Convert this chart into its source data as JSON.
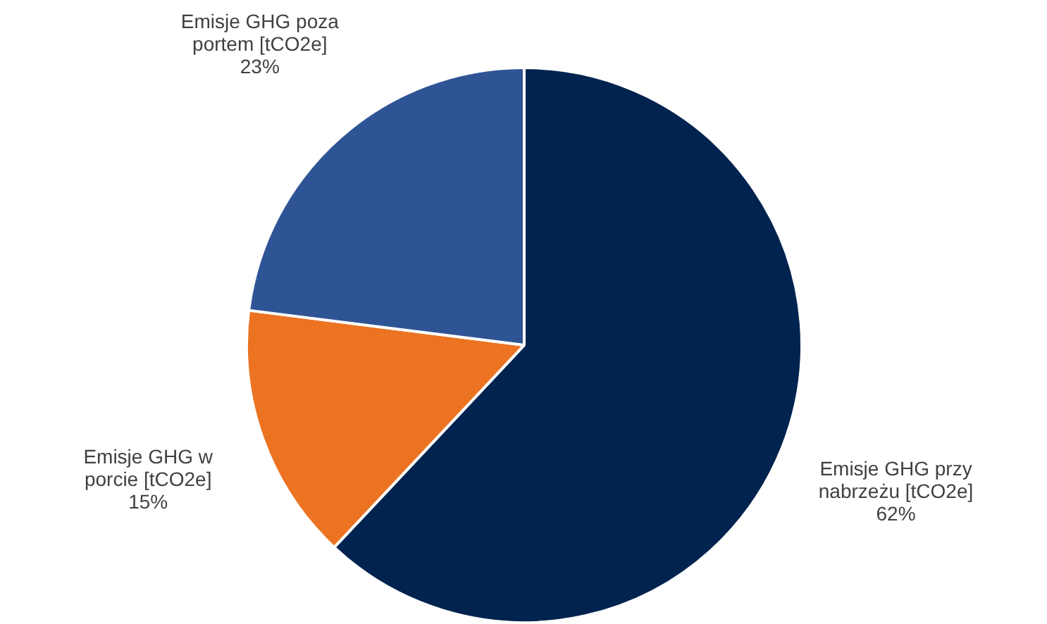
{
  "chart_data": {
    "type": "pie",
    "categories": [
      "Emisje GHG przy nabrzeżu [tCO2e]",
      "Emisje GHG w porcie [tCO2e]",
      "Emisje GHG poza portem [tCO2e]"
    ],
    "values": [
      62,
      15,
      23
    ],
    "colors": [
      "#00234f",
      "#ec7321",
      "#2f5496"
    ],
    "value_labels": [
      "62%",
      "15%",
      "23%"
    ],
    "legend": false
  }
}
